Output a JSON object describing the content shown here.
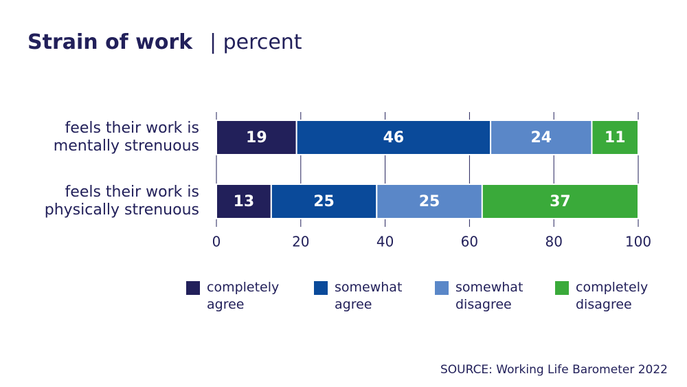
{
  "chart_data": {
    "type": "stacked-bar-horizontal",
    "title": "Strain of work",
    "subtitle": "| percent",
    "categories": [
      "feels their work is\nmentally strenuous",
      "feels their work is\nphysically strenuous"
    ],
    "series": [
      {
        "name": "completely agree",
        "color": "#22205a",
        "values": [
          19,
          13
        ]
      },
      {
        "name": "somewhat agree",
        "color": "#0a4a9a",
        "values": [
          46,
          25
        ]
      },
      {
        "name": "somewhat disagree",
        "color": "#5a87c8",
        "values": [
          24,
          25
        ]
      },
      {
        "name": "completely disagree",
        "color": "#3aaa3a",
        "values": [
          11,
          37
        ]
      }
    ],
    "xlim": [
      0,
      100
    ],
    "xticks": [
      0,
      20,
      40,
      60,
      80,
      100
    ],
    "grid": true,
    "source": "SOURCE: Working Life Barometer 2022"
  }
}
